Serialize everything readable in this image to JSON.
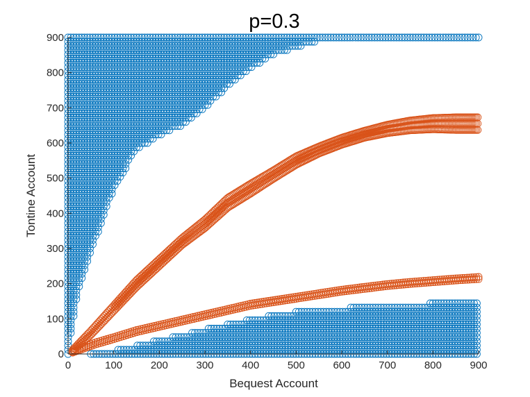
{
  "chart_data": {
    "type": "scatter",
    "title": "p=0.3",
    "xlabel": "Bequest Account",
    "ylabel": "Tontine Account",
    "xlim": [
      0,
      900
    ],
    "ylim": [
      0,
      900
    ],
    "xticks": [
      "0",
      "100",
      "200",
      "300",
      "400",
      "500",
      "600",
      "700",
      "800",
      "900"
    ],
    "yticks": [
      "0",
      "100",
      "200",
      "300",
      "400",
      "500",
      "600",
      "700",
      "800",
      "900"
    ],
    "grid": false,
    "marker": "open-circle",
    "series": [
      {
        "color": "#0072BD",
        "shape": "region-above-curve",
        "boundary_x": [
          0,
          20,
          50,
          100,
          150,
          200,
          250,
          300,
          350,
          400,
          450,
          500,
          550,
          600,
          650,
          700,
          750,
          800,
          850,
          900
        ],
        "boundary_y": [
          0,
          170,
          290,
          470,
          580,
          620,
          650,
          700,
          760,
          810,
          850,
          870,
          890,
          900,
          900,
          900,
          900,
          900,
          900,
          900
        ],
        "y_max": 900
      },
      {
        "color": "#0072BD",
        "shape": "region-below-curve",
        "boundary_x": [
          50,
          100,
          150,
          200,
          250,
          300,
          350,
          400,
          450,
          500,
          550,
          600,
          650,
          700,
          750,
          800,
          850,
          900
        ],
        "boundary_y": [
          0,
          10,
          25,
          40,
          55,
          70,
          85,
          100,
          110,
          120,
          125,
          130,
          135,
          140,
          140,
          145,
          150,
          150
        ],
        "y_min": 0
      },
      {
        "color": "#D95319",
        "shape": "band",
        "x": [
          10,
          50,
          100,
          150,
          200,
          250,
          300,
          350,
          400,
          450,
          500,
          550,
          600,
          650,
          700,
          750,
          800,
          850,
          900
        ],
        "y": [
          10,
          60,
          130,
          200,
          260,
          320,
          370,
          430,
          470,
          510,
          550,
          580,
          605,
          625,
          640,
          650,
          655,
          655,
          655
        ],
        "spread": [
          2,
          6,
          8,
          10,
          10,
          10,
          12,
          14,
          14,
          12,
          12,
          10,
          10,
          10,
          12,
          14,
          16,
          18,
          18
        ]
      },
      {
        "color": "#D95319",
        "shape": "curve",
        "x": [
          10,
          30,
          60,
          100,
          150,
          200,
          250,
          300,
          350,
          400,
          450,
          500,
          550,
          600,
          650,
          700,
          750,
          800,
          850,
          900
        ],
        "y": [
          5,
          15,
          30,
          45,
          65,
          80,
          95,
          110,
          125,
          140,
          150,
          160,
          170,
          180,
          188,
          196,
          202,
          207,
          212,
          216
        ],
        "spread": [
          1,
          2,
          3,
          3,
          3,
          3,
          3,
          3,
          3,
          3,
          3,
          3,
          3,
          3,
          3,
          3,
          3,
          3,
          3,
          3
        ]
      }
    ]
  }
}
